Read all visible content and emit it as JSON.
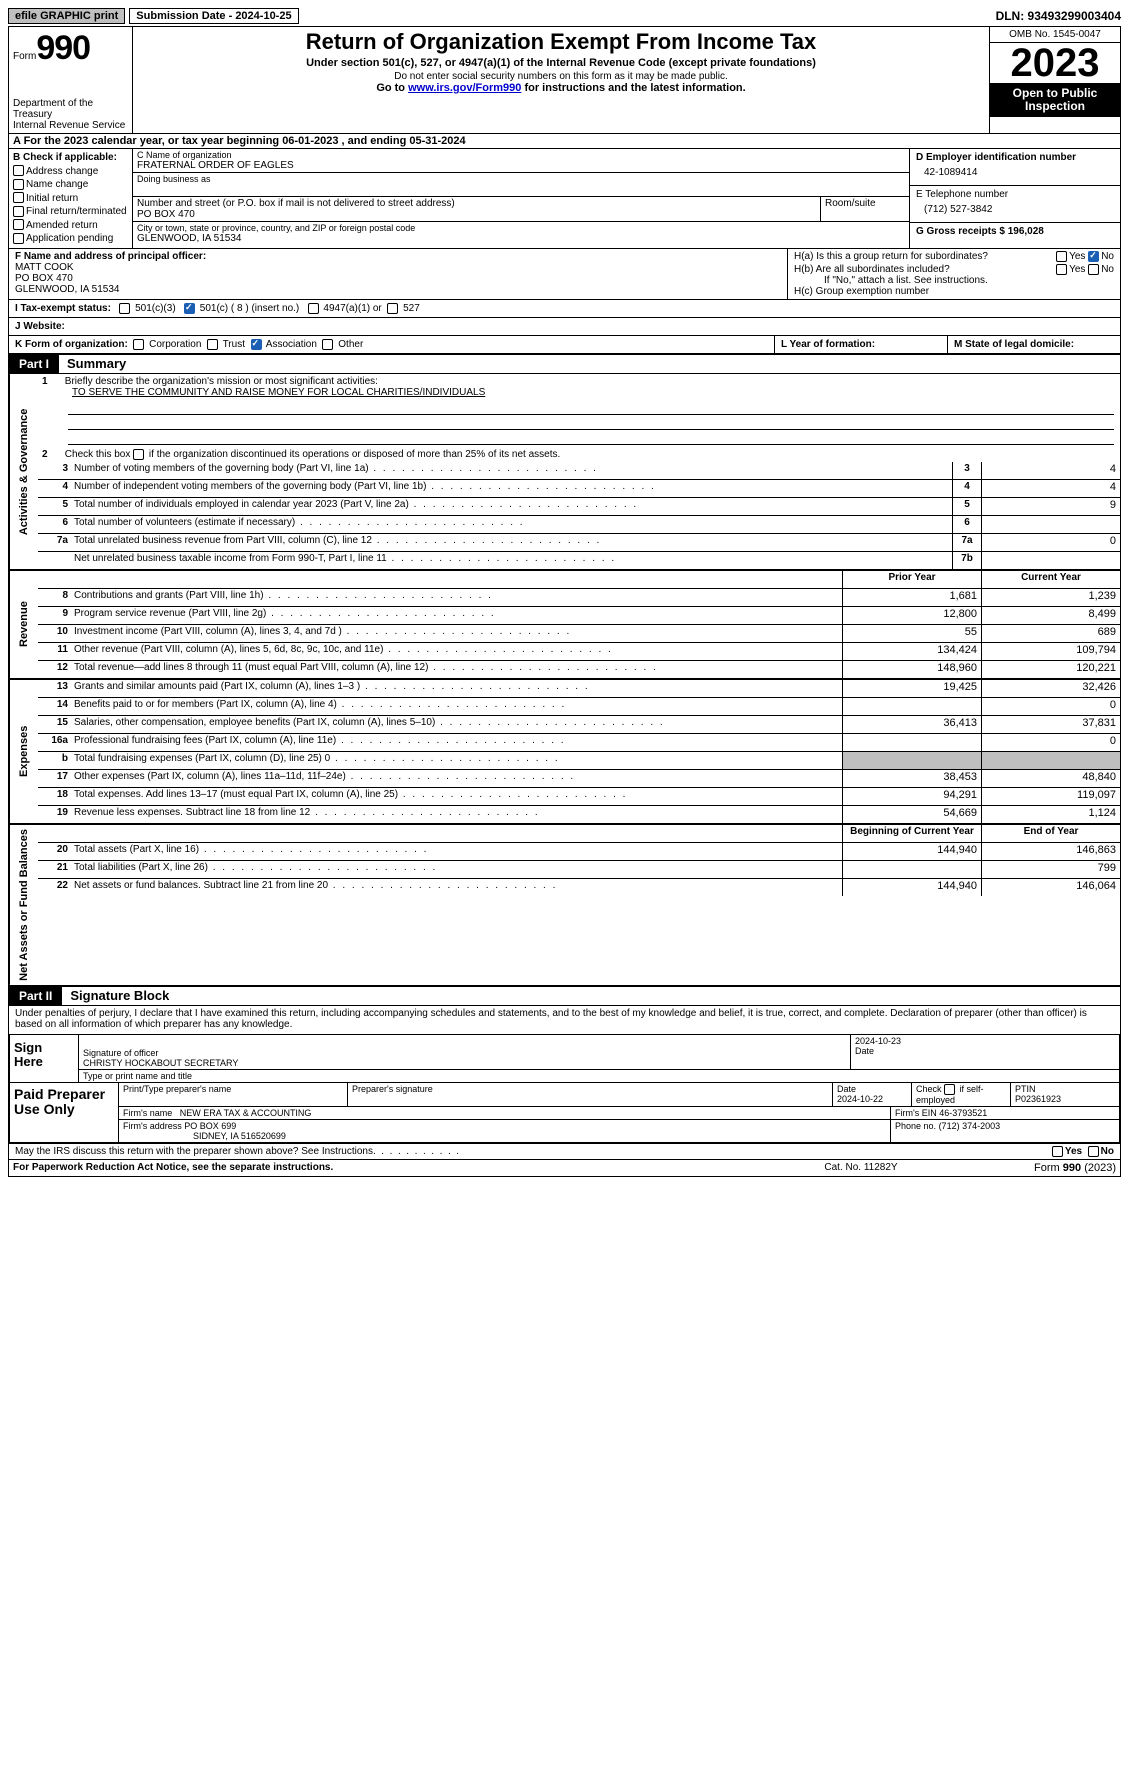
{
  "topbar": {
    "efile": "efile GRAPHIC print",
    "submission": "Submission Date - 2024-10-25",
    "dln": "DLN: 93493299003404"
  },
  "header": {
    "form_word": "Form",
    "form_num": "990",
    "dept": "Department of the Treasury\nInternal Revenue Service",
    "title": "Return of Organization Exempt From Income Tax",
    "sub": "Under section 501(c), 527, or 4947(a)(1) of the Internal Revenue Code (except private foundations)",
    "note": "Do not enter social security numbers on this form as it may be made public.",
    "link_pre": "Go to ",
    "link": "www.irs.gov/Form990",
    "link_post": " for instructions and the latest information.",
    "omb": "OMB No. 1545-0047",
    "year": "2023",
    "open": "Open to Public Inspection"
  },
  "rowA": "A For the 2023 calendar year, or tax year beginning 06-01-2023   , and ending 05-31-2024",
  "colB": {
    "title": "B Check if applicable:",
    "items": [
      "Address change",
      "Name change",
      "Initial return",
      "Final return/terminated",
      "Amended return",
      "Application pending"
    ]
  },
  "colC": {
    "name_label": "C Name of organization",
    "name": "FRATERNAL ORDER OF EAGLES",
    "dba_label": "Doing business as",
    "street_label": "Number and street (or P.O. box if mail is not delivered to street address)",
    "room_label": "Room/suite",
    "street": "PO BOX 470",
    "city_label": "City or town, state or province, country, and ZIP or foreign postal code",
    "city": "GLENWOOD, IA  51534"
  },
  "colDE": {
    "d_label": "D Employer identification number",
    "d_val": "42-1089414",
    "e_label": "E Telephone number",
    "e_val": "(712) 527-3842",
    "g_label": "G Gross receipts $ 196,028"
  },
  "colF": {
    "label": "F  Name and address of principal officer:",
    "l1": "MATT COOK",
    "l2": "PO BOX 470",
    "l3": "GLENWOOD, IA  51534"
  },
  "colH": {
    "ha": "H(a)  Is this a group return for subordinates?",
    "hb": "H(b)  Are all subordinates included?",
    "hb_note": "If \"No,\" attach a list. See instructions.",
    "hc": "H(c)  Group exemption number"
  },
  "rowI": {
    "label": "I   Tax-exempt status:",
    "opt1": "501(c)(3)",
    "opt2": "501(c) ( 8 ) (insert no.)",
    "opt3": "4947(a)(1) or",
    "opt4": "527"
  },
  "rowJ": "J   Website:",
  "rowK": {
    "label": "K Form of organization:",
    "opts": [
      "Corporation",
      "Trust",
      "Association",
      "Other"
    ],
    "l": "L Year of formation:",
    "m": "M State of legal domicile:"
  },
  "part1": {
    "header": "Part I",
    "title": "Summary"
  },
  "summary": {
    "mission_label": "Briefly describe the organization's mission or most significant activities:",
    "mission": "TO SERVE THE COMMUNITY AND RAISE MONEY FOR LOCAL CHARITIES/INDIVIDUALS",
    "line2": "Check this box       if the organization discontinued its operations or disposed of more than 25% of its net assets.",
    "vtabs": {
      "gov": "Activities & Governance",
      "rev": "Revenue",
      "exp": "Expenses",
      "net": "Net Assets or Fund Balances"
    },
    "gov_rows": [
      {
        "n": "3",
        "d": "Number of voting members of the governing body (Part VI, line 1a)",
        "box": "3",
        "v": "4"
      },
      {
        "n": "4",
        "d": "Number of independent voting members of the governing body (Part VI, line 1b)",
        "box": "4",
        "v": "4"
      },
      {
        "n": "5",
        "d": "Total number of individuals employed in calendar year 2023 (Part V, line 2a)",
        "box": "5",
        "v": "9"
      },
      {
        "n": "6",
        "d": "Total number of volunteers (estimate if necessary)",
        "box": "6",
        "v": ""
      },
      {
        "n": "7a",
        "d": "Total unrelated business revenue from Part VIII, column (C), line 12",
        "box": "7a",
        "v": "0"
      },
      {
        "n": "",
        "d": "Net unrelated business taxable income from Form 990-T, Part I, line 11",
        "box": "7b",
        "v": ""
      }
    ],
    "head_prior": "Prior Year",
    "head_curr": "Current Year",
    "rev_rows": [
      {
        "n": "8",
        "d": "Contributions and grants (Part VIII, line 1h)",
        "p": "1,681",
        "c": "1,239"
      },
      {
        "n": "9",
        "d": "Program service revenue (Part VIII, line 2g)",
        "p": "12,800",
        "c": "8,499"
      },
      {
        "n": "10",
        "d": "Investment income (Part VIII, column (A), lines 3, 4, and 7d )",
        "p": "55",
        "c": "689"
      },
      {
        "n": "11",
        "d": "Other revenue (Part VIII, column (A), lines 5, 6d, 8c, 9c, 10c, and 11e)",
        "p": "134,424",
        "c": "109,794"
      },
      {
        "n": "12",
        "d": "Total revenue—add lines 8 through 11 (must equal Part VIII, column (A), line 12)",
        "p": "148,960",
        "c": "120,221"
      }
    ],
    "exp_rows": [
      {
        "n": "13",
        "d": "Grants and similar amounts paid (Part IX, column (A), lines 1–3 )",
        "p": "19,425",
        "c": "32,426"
      },
      {
        "n": "14",
        "d": "Benefits paid to or for members (Part IX, column (A), line 4)",
        "p": "",
        "c": "0"
      },
      {
        "n": "15",
        "d": "Salaries, other compensation, employee benefits (Part IX, column (A), lines 5–10)",
        "p": "36,413",
        "c": "37,831"
      },
      {
        "n": "16a",
        "d": "Professional fundraising fees (Part IX, column (A), line 11e)",
        "p": "",
        "c": "0"
      },
      {
        "n": "b",
        "d": "Total fundraising expenses (Part IX, column (D), line 25) 0",
        "p": "SHADE",
        "c": "SHADE"
      },
      {
        "n": "17",
        "d": "Other expenses (Part IX, column (A), lines 11a–11d, 11f–24e)",
        "p": "38,453",
        "c": "48,840"
      },
      {
        "n": "18",
        "d": "Total expenses. Add lines 13–17 (must equal Part IX, column (A), line 25)",
        "p": "94,291",
        "c": "119,097"
      },
      {
        "n": "19",
        "d": "Revenue less expenses. Subtract line 18 from line 12",
        "p": "54,669",
        "c": "1,124"
      }
    ],
    "head_beg": "Beginning of Current Year",
    "head_end": "End of Year",
    "net_rows": [
      {
        "n": "20",
        "d": "Total assets (Part X, line 16)",
        "p": "144,940",
        "c": "146,863"
      },
      {
        "n": "21",
        "d": "Total liabilities (Part X, line 26)",
        "p": "",
        "c": "799"
      },
      {
        "n": "22",
        "d": "Net assets or fund balances. Subtract line 21 from line 20",
        "p": "144,940",
        "c": "146,064"
      }
    ]
  },
  "part2": {
    "header": "Part II",
    "title": "Signature Block",
    "decl": "Under penalties of perjury, I declare that I have examined this return, including accompanying schedules and statements, and to the best of my knowledge and belief, it is true, correct, and complete. Declaration of preparer (other than officer) is based on all information of which preparer has any knowledge."
  },
  "sign": {
    "here": "Sign Here",
    "sig_label": "Signature of officer",
    "date_label": "Date",
    "date_val": "2024-10-23",
    "name": "CHRISTY HOCKABOUT SECRETARY",
    "name_label": "Type or print name and title"
  },
  "paid": {
    "title": "Paid Preparer Use Only",
    "col1": "Print/Type preparer's name",
    "col2": "Preparer's signature",
    "col3": "Date",
    "date": "2024-10-22",
    "col4": "Check        if self-employed",
    "col5": "PTIN",
    "ptin": "P02361923",
    "firm_label": "Firm's name",
    "firm": "NEW ERA TAX & ACCOUNTING",
    "ein_label": "Firm's EIN",
    "ein": "46-3793521",
    "addr_label": "Firm's address",
    "addr1": "PO BOX 699",
    "addr2": "SIDNEY, IA  516520699",
    "phone_label": "Phone no.",
    "phone": "(712) 374-2003"
  },
  "discuss": "May the IRS discuss this return with the preparer shown above? See Instructions.",
  "footer": {
    "l": "For Paperwork Reduction Act Notice, see the separate instructions.",
    "c": "Cat. No. 11282Y",
    "r": "Form 990 (2023)"
  }
}
